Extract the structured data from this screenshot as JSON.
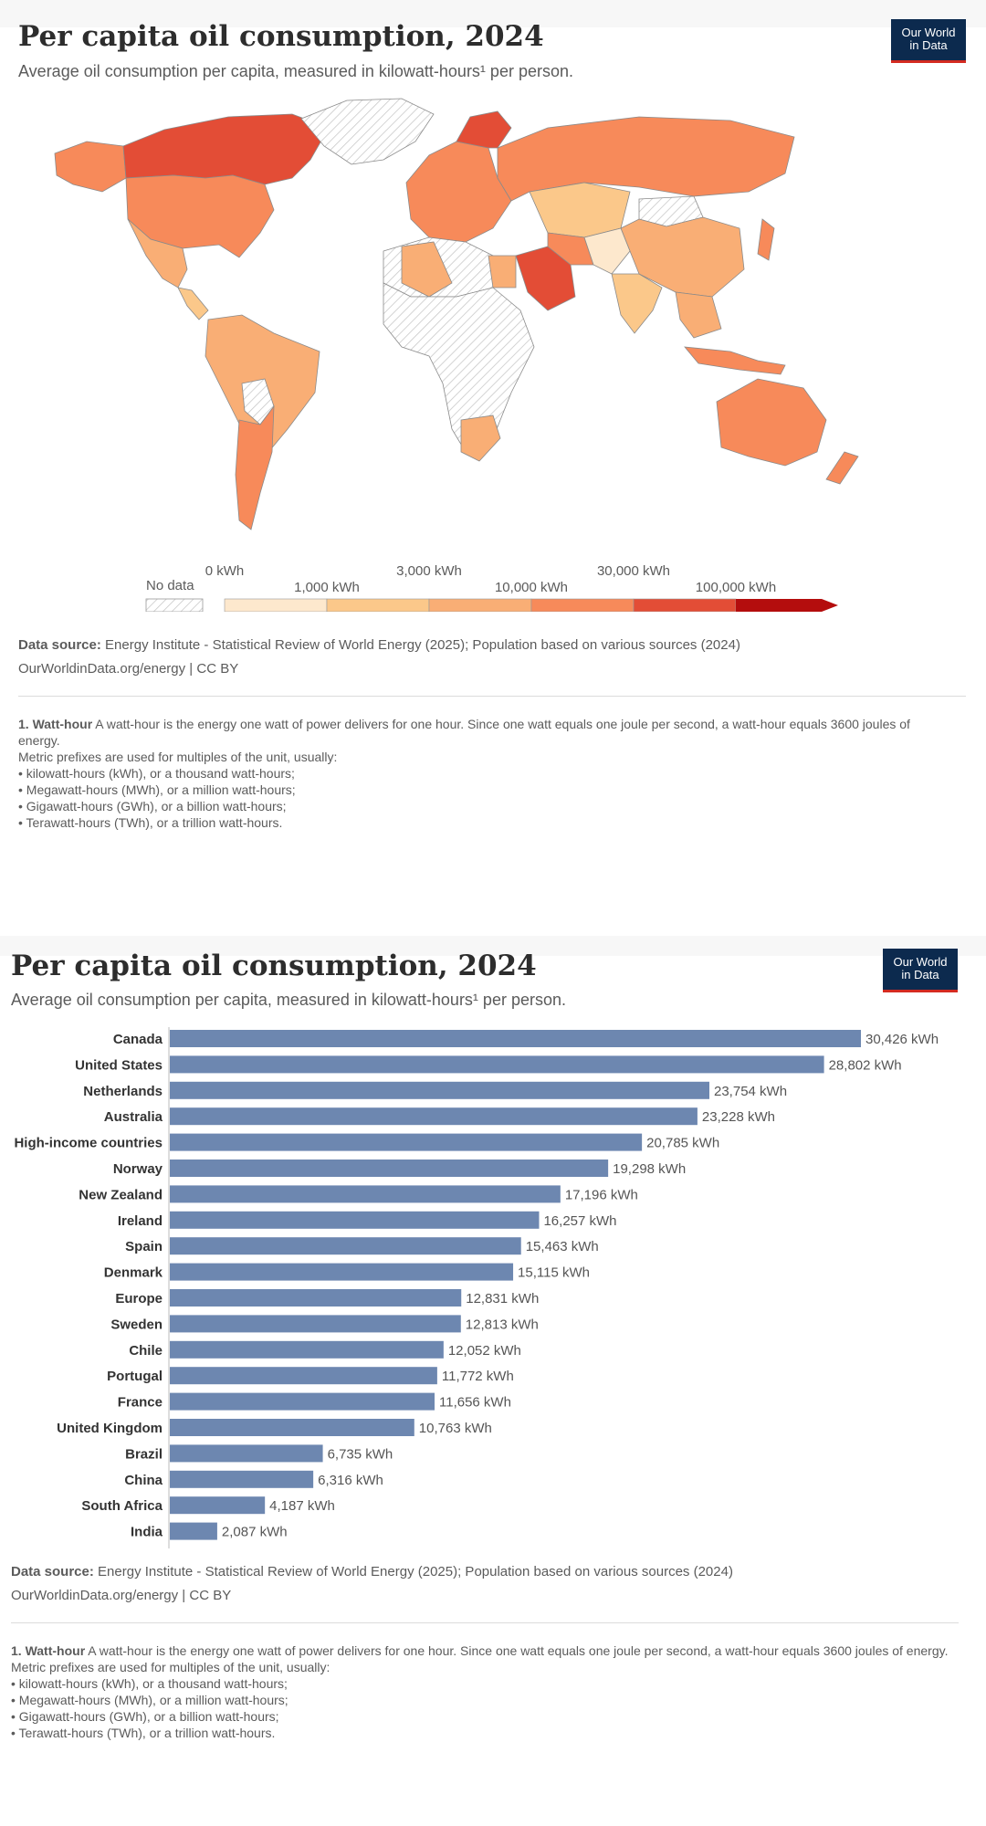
{
  "map_panel": {
    "title": "Per capita oil consumption, 2024",
    "subtitle": "Average oil consumption per capita, measured in kilowatt-hours¹ per person.",
    "logo_line1": "Our World",
    "logo_line2": "in Data",
    "legend": {
      "no_data": "No data",
      "top_ticks": [
        "0 kWh",
        "3,000 kWh",
        "30,000 kWh"
      ],
      "bottom_ticks": [
        "1,000 kWh",
        "10,000 kWh",
        "100,000 kWh"
      ],
      "colors": [
        "#fde8cd",
        "#fbc88a",
        "#f9ae75",
        "#f78a5a",
        "#e34d36",
        "#b40d0d"
      ]
    },
    "source_label": "Data source:",
    "source_text": " Energy Institute - Statistical Review of World Energy (2025); Population based on various sources (2024)",
    "link_text": "OurWorldinData.org/energy | CC BY",
    "footnote": {
      "title": "1. Watt-hour",
      "text": " A watt-hour is the energy one watt of power delivers for one hour. Since one watt equals one joule per second, a watt-hour equals 3600 joules of energy.",
      "intro": "Metric prefixes are used for multiples of the unit, usually:",
      "items": [
        "• kilowatt-hours (kWh), or a thousand watt-hours;",
        "• Megawatt-hours (MWh), or a million watt-hours;",
        "• Gigawatt-hours (GWh), or a billion watt-hours;",
        "• Terawatt-hours (TWh), or a trillion watt-hours."
      ]
    }
  },
  "bar_panel": {
    "title": "Per capita oil consumption, 2024",
    "subtitle": "Average oil consumption per capita, measured in kilowatt-hours¹ per person.",
    "logo_line1": "Our World",
    "logo_line2": "in Data",
    "source_label": "Data source:",
    "source_text": " Energy Institute - Statistical Review of World Energy (2025); Population based on various sources (2024)",
    "link_text": "OurWorldinData.org/energy | CC BY",
    "footnote": {
      "title": "1. Watt-hour",
      "text": " A watt-hour is the energy one watt of power delivers for one hour. Since one watt equals one joule per second, a watt-hour equals 3600 joules of energy.",
      "intro": "Metric prefixes are used for multiples of the unit, usually:",
      "items": [
        "• kilowatt-hours (kWh), or a thousand watt-hours;",
        "• Megawatt-hours (MWh), or a million watt-hours;",
        "• Gigawatt-hours (GWh), or a billion watt-hours;",
        "• Terawatt-hours (TWh), or a trillion watt-hours."
      ]
    }
  },
  "chart_data": [
    {
      "type": "map",
      "title": "Per capita oil consumption, 2024",
      "unit": "kWh",
      "color_scale_bins": [
        0,
        1000,
        3000,
        10000,
        30000,
        100000
      ],
      "colors": {
        "Canada": "#e34d36",
        "Saudi Arabia": "#e34d36",
        "United States": "#f78a5a",
        "Russia": "#f78a5a",
        "Australia": "#f78a5a",
        "China": "#f9ae75",
        "Brazil": "#f9ae75",
        "India": "#fbc88a"
      }
    },
    {
      "type": "bar",
      "orientation": "horizontal",
      "title": "Per capita oil consumption, 2024",
      "unit": "kWh",
      "bar_color": "#6d87b0",
      "categories": [
        "Canada",
        "United States",
        "Netherlands",
        "Australia",
        "High-income countries",
        "Norway",
        "New Zealand",
        "Ireland",
        "Spain",
        "Denmark",
        "Europe",
        "Sweden",
        "Chile",
        "Portugal",
        "France",
        "United Kingdom",
        "Brazil",
        "China",
        "South Africa",
        "India"
      ],
      "values": [
        30426,
        28802,
        23754,
        23228,
        20785,
        19298,
        17196,
        16257,
        15463,
        15115,
        12831,
        12813,
        12052,
        11772,
        11656,
        10763,
        6735,
        6316,
        4187,
        2087
      ],
      "value_labels": [
        "30,426 kWh",
        "28,802 kWh",
        "23,754 kWh",
        "23,228 kWh",
        "20,785 kWh",
        "19,298 kWh",
        "17,196 kWh",
        "16,257 kWh",
        "15,463 kWh",
        "15,115 kWh",
        "12,831 kWh",
        "12,813 kWh",
        "12,052 kWh",
        "11,772 kWh",
        "11,656 kWh",
        "10,763 kWh",
        "6,735 kWh",
        "6,316 kWh",
        "4,187 kWh",
        "2,087 kWh"
      ]
    }
  ]
}
